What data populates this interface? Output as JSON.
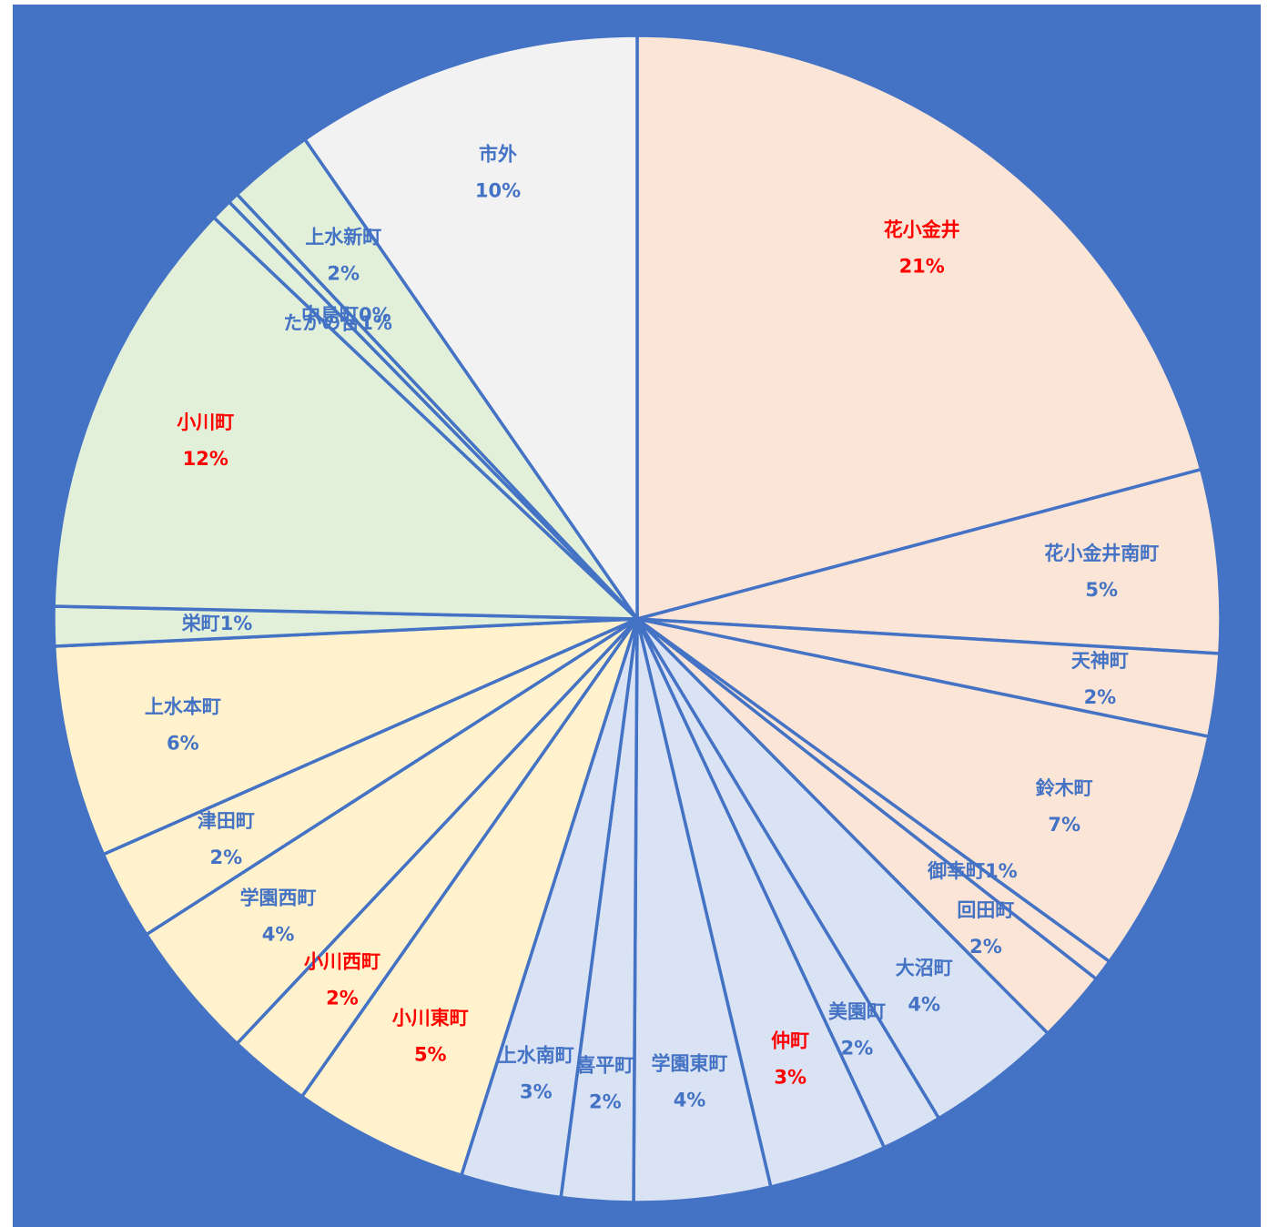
{
  "chart_data": {
    "type": "pie",
    "categories": [
      "花小金井",
      "花小金井南町",
      "天神町",
      "鈴木町",
      "御幸町",
      "回田町",
      "大沼町",
      "美園町",
      "仲町",
      "学園東町",
      "喜平町",
      "上水南町",
      "小川東町",
      "小川西町",
      "学園西町",
      "津田町",
      "上水本町",
      "栄町",
      "小川町",
      "たかの台",
      "中島町",
      "上水新町",
      "市外"
    ],
    "values": [
      21,
      5.1,
      2.3,
      6.8,
      0.6,
      2.0,
      3.8,
      1.7,
      3.3,
      3.8,
      2.0,
      2.8,
      4.9,
      2.3,
      3.9,
      2.5,
      5.9,
      1.1,
      11.8,
      0.6,
      0.3,
      2.4,
      9.7
    ],
    "value_labels": [
      "21%",
      "5%",
      "2%",
      "7%",
      "1%",
      "2%",
      "4%",
      "2%",
      "3%",
      "4%",
      "2%",
      "3%",
      "5%",
      "2%",
      "4%",
      "2%",
      "6%",
      "1%",
      "12%",
      "1%",
      "0%",
      "2%",
      "10%"
    ],
    "colors": [
      "#fbe5d6",
      "#fbe5d6",
      "#fbe5d6",
      "#fbe5d6",
      "#fbe5d6",
      "#fbe5d6",
      "#dae3f3",
      "#dae3f3",
      "#dae3f3",
      "#dae3f3",
      "#dae3f3",
      "#dae3f3",
      "#fff2cc",
      "#fff2cc",
      "#fff2cc",
      "#fff2cc",
      "#fff2cc",
      "#e2f0d9",
      "#e2f0d9",
      "#e2f0d9",
      "#e2f0d9",
      "#e2f0d9",
      "#f2f2f2"
    ],
    "label_colors": [
      "#ff0000",
      "#4472c4",
      "#4472c4",
      "#4472c4",
      "#4472c4",
      "#4472c4",
      "#4472c4",
      "#4472c4",
      "#ff0000",
      "#4472c4",
      "#4472c4",
      "#4472c4",
      "#ff0000",
      "#ff0000",
      "#4472c4",
      "#4472c4",
      "#4472c4",
      "#4472c4",
      "#ff0000",
      "#4472c4",
      "#4472c4",
      "#4472c4",
      "#4472c4"
    ],
    "edge_color": "#4472c4"
  }
}
